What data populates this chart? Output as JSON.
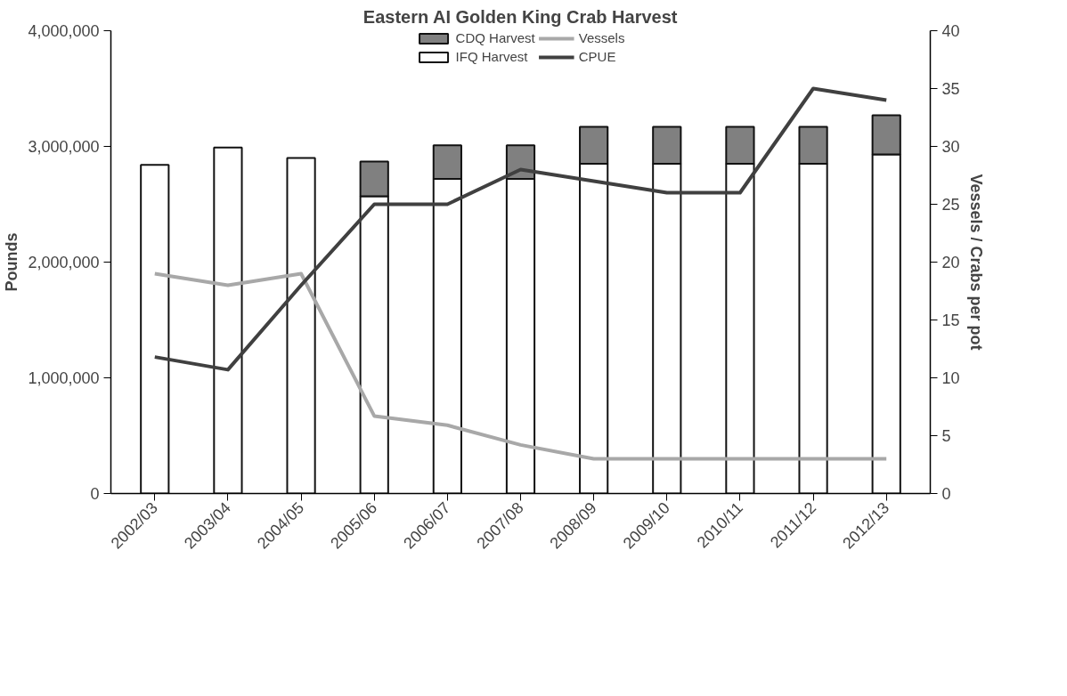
{
  "chart_data": {
    "type": "bar",
    "title": "Eastern AI Golden King Crab Harvest",
    "ylabel": "Pounds",
    "y2label": "Vessels / Crabs per pot",
    "categories": [
      "2002/03",
      "2003/04",
      "2004/05",
      "2005/06",
      "2006/07",
      "2007/08",
      "2008/09",
      "2009/10",
      "2010/11",
      "2011/12",
      "2012/13"
    ],
    "stacked": true,
    "legend": "top",
    "grid": false,
    "series": [
      {
        "name": "IFQ Harvest",
        "color": "#ffffff",
        "values": [
          2840000,
          2990000,
          2900000,
          2570000,
          2720000,
          2720000,
          2850000,
          2850000,
          2850000,
          2850000,
          2930000
        ]
      },
      {
        "name": "CDQ Harvest",
        "color": "#808080",
        "values": [
          null,
          null,
          null,
          300000,
          290000,
          290000,
          320000,
          320000,
          320000,
          320000,
          340000
        ]
      },
      {
        "name": "Vessels",
        "type": "line",
        "axis": "y2",
        "color": "#a8a8a8",
        "values": [
          19,
          18,
          19,
          6.7,
          5.9,
          4.2,
          3,
          3,
          3,
          3,
          3
        ]
      },
      {
        "name": "CPUE",
        "type": "line",
        "axis": "y2",
        "color": "#404040",
        "values": [
          11.8,
          10.7,
          18,
          25,
          25,
          28,
          27,
          26,
          26,
          35,
          34
        ]
      }
    ],
    "ylim": [
      0,
      4000000
    ],
    "yticks": [
      {
        "value": 0,
        "label": "0"
      },
      {
        "value": 1000000,
        "label": "1,000,000"
      },
      {
        "value": 2000000,
        "label": "2,000,000"
      },
      {
        "value": 3000000,
        "label": "3,000,000"
      },
      {
        "value": 4000000,
        "label": "4,000,000"
      }
    ],
    "y2lim": [
      0,
      40
    ],
    "y2ticks": [
      0,
      5,
      10,
      15,
      20,
      25,
      30,
      35,
      40
    ]
  }
}
